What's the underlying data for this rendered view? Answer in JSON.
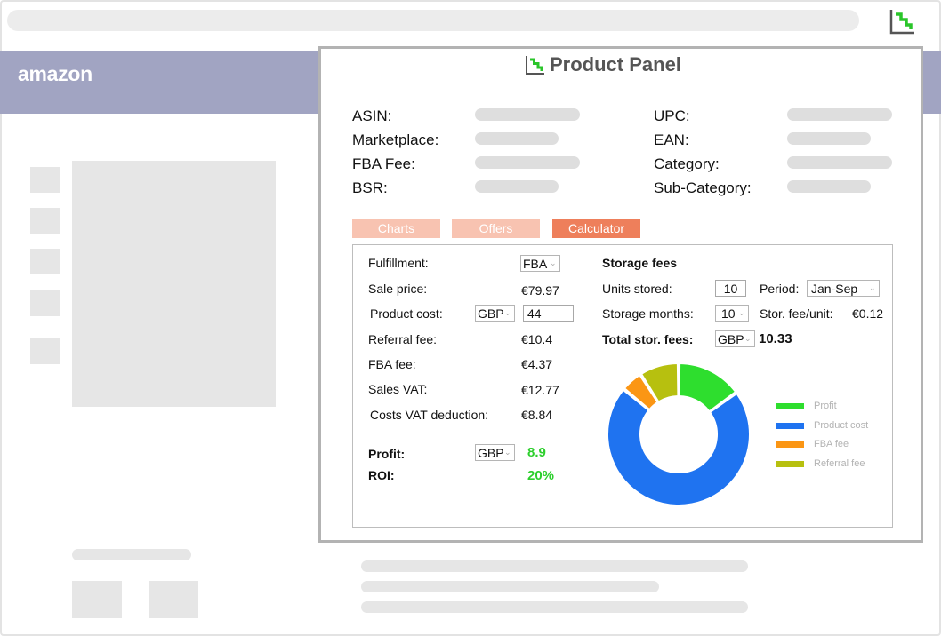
{
  "browser": {
    "extension_icon": "product-panel-logo"
  },
  "site": {
    "logo_text": "amazon"
  },
  "panel": {
    "title": "Product Panel",
    "info_left": [
      {
        "label": "ASIN:"
      },
      {
        "label": "Marketplace:"
      },
      {
        "label": "FBA Fee:"
      },
      {
        "label": "BSR:"
      }
    ],
    "info_right": [
      {
        "label": "UPC:"
      },
      {
        "label": "EAN:"
      },
      {
        "label": "Category:"
      },
      {
        "label": "Sub-Category:"
      }
    ],
    "tabs": [
      {
        "label": "Charts",
        "state": "inactive"
      },
      {
        "label": "Offers",
        "state": "inactive"
      },
      {
        "label": "Calculator",
        "state": "active"
      }
    ],
    "calculator": {
      "fulfillment": {
        "label": "Fulfillment:",
        "value": "FBA"
      },
      "sale_price": {
        "label": "Sale price:",
        "value": "€79.97"
      },
      "product_cost": {
        "label": "Product cost:",
        "currency": "GBP",
        "value": "44"
      },
      "referral_fee": {
        "label": "Referral fee:",
        "value": "€10.4"
      },
      "fba_fee": {
        "label": "FBA fee:",
        "value": "€4.37"
      },
      "sales_vat": {
        "label": "Sales VAT:",
        "value": "€12.77"
      },
      "costs_vat_deduction": {
        "label": "Costs VAT deduction:",
        "value": "€8.84"
      },
      "profit": {
        "label": "Profit:",
        "currency": "GBP",
        "value": "8.9"
      },
      "roi": {
        "label": "ROI:",
        "value": "20%"
      }
    },
    "storage": {
      "heading": "Storage fees",
      "units_stored": {
        "label": "Units stored:",
        "value": "10"
      },
      "period": {
        "label": "Period:",
        "value": "Jan-Sep"
      },
      "storage_months": {
        "label": "Storage months:",
        "value": "10"
      },
      "fee_per_unit": {
        "label": "Stor. fee/unit:",
        "value": "€0.12"
      },
      "total": {
        "label": "Total stor. fees:",
        "currency": "GBP",
        "value": "10.33"
      }
    },
    "colors": {
      "profit": "#2ede2e",
      "product_cost": "#1f73f0",
      "fba_fee": "#fb9614",
      "referral_fee": "#b7c00f",
      "tab_active": "#ee7f5b",
      "tab_inactive": "#f8c3b1",
      "accent_green": "#2dcf2d"
    }
  },
  "chart_data": {
    "type": "pie",
    "style": "donut",
    "legend_placement": "right",
    "slices": [
      {
        "name": "Profit",
        "value": 15
      },
      {
        "name": "Product cost",
        "value": 71
      },
      {
        "name": "FBA fee",
        "value": 5
      },
      {
        "name": "Referral fee",
        "value": 9
      }
    ]
  }
}
